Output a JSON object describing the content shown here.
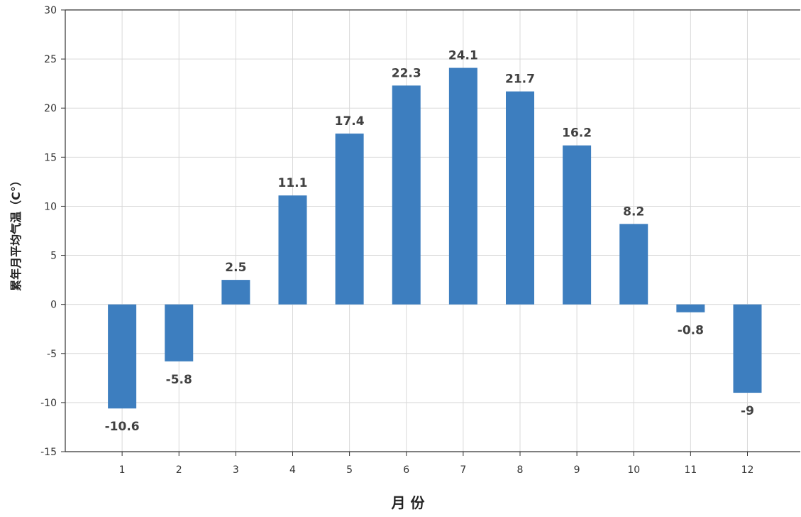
{
  "chart_data": {
    "type": "bar",
    "title": "",
    "xlabel": "月 份",
    "ylabel": "累年月平均气温（C°）",
    "categories": [
      "1",
      "2",
      "3",
      "4",
      "5",
      "6",
      "7",
      "8",
      "9",
      "10",
      "11",
      "12"
    ],
    "values": [
      -10.6,
      -5.8,
      2.5,
      11.1,
      17.4,
      22.3,
      24.1,
      21.7,
      16.2,
      8.2,
      -0.8,
      -9
    ],
    "data_labels": [
      "-10.6",
      "-5.8",
      "2.5",
      "11.1",
      "17.4",
      "22.3",
      "24.1",
      "21.7",
      "16.2",
      "8.2",
      "-0.8",
      "-9"
    ],
    "y_ticks": [
      "30",
      "25",
      "20",
      "15",
      "10",
      "5",
      "0",
      "-5",
      "-10",
      "-15"
    ],
    "ylim": [
      -15,
      30
    ],
    "grid": true,
    "legend": "none",
    "colors": {
      "bar": "#3d7ebf",
      "grid": "#d9d9d9",
      "axis": "#333333"
    }
  }
}
